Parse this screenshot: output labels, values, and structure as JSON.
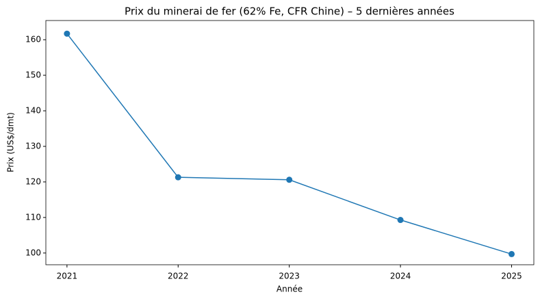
{
  "chart_data": {
    "type": "line",
    "title": "Prix du minerai de fer (62% Fe, CFR Chine) – 5 dernières années",
    "x_label": "Année",
    "y_label": "Prix (US$/dmt)",
    "x": [
      2021,
      2022,
      2023,
      2024,
      2025
    ],
    "series": [
      {
        "name": "Prix",
        "color": "#1f77b4",
        "values": [
          161.7,
          121.3,
          120.6,
          109.3,
          99.7
        ]
      }
    ],
    "xlim": [
      2020.81,
      2025.2
    ],
    "xticks": [
      2021,
      2022,
      2023,
      2024,
      2025
    ],
    "ylim": [
      96.7,
      165.4
    ],
    "yticks": [
      100,
      110,
      120,
      130,
      140,
      150,
      160
    ],
    "grid": false,
    "markers": true
  }
}
